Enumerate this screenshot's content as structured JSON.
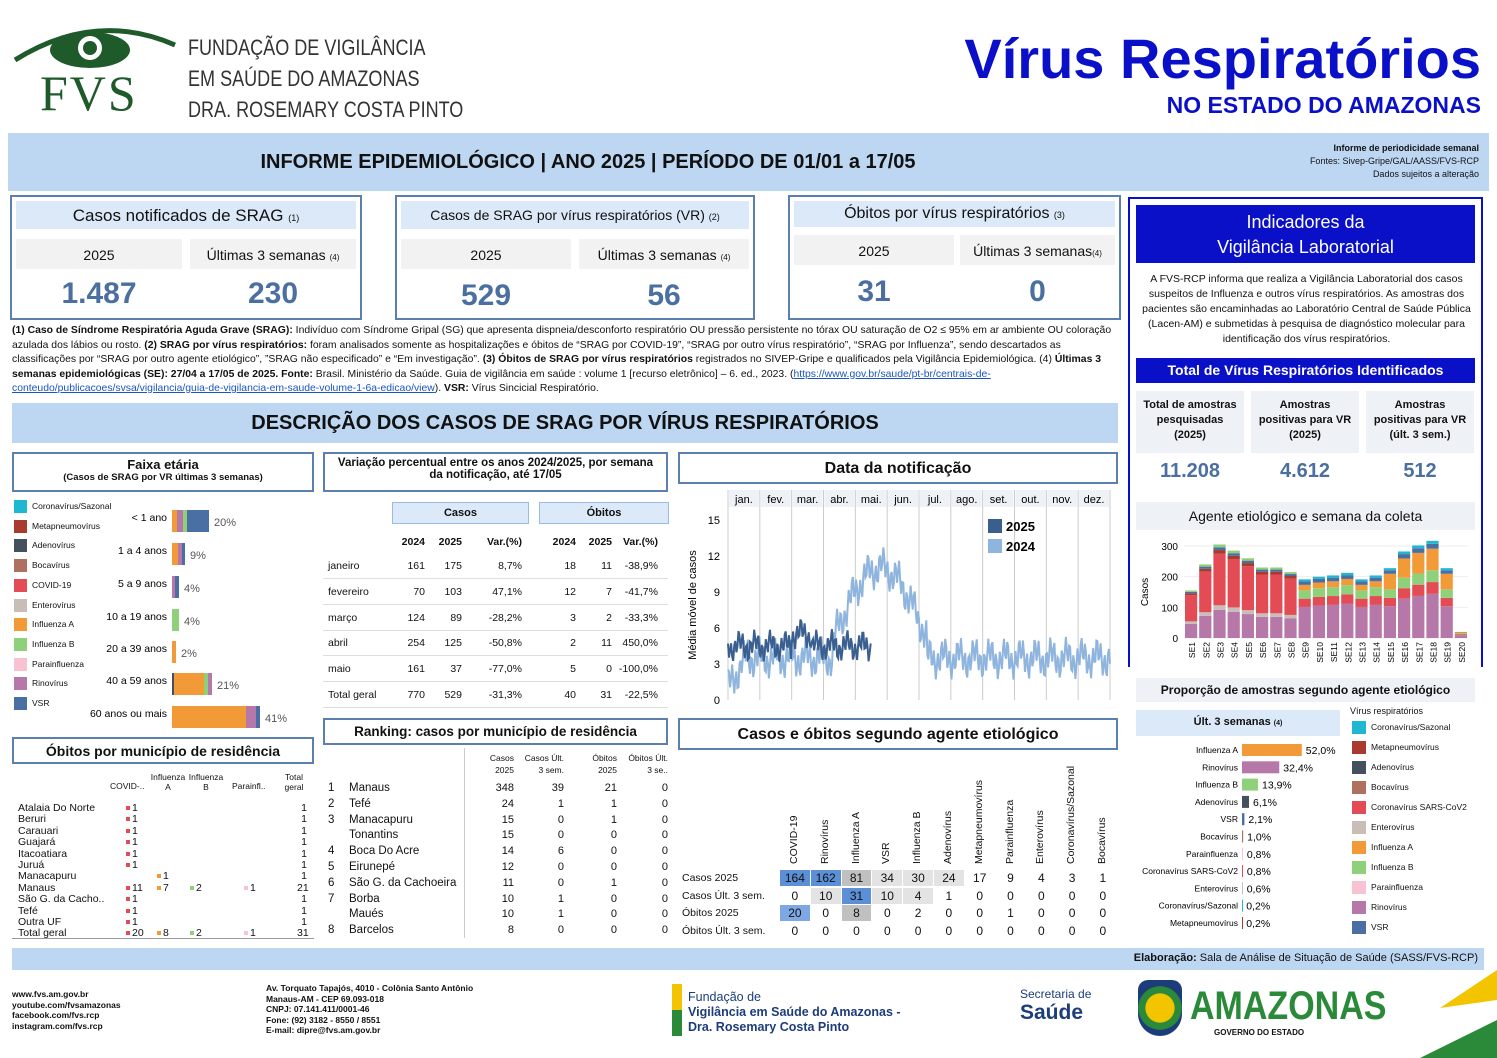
{
  "logo": {
    "fvs": "FVS",
    "line1": "FUNDAÇÃO DE VIGILÂNCIA",
    "line2": "EM SAÚDE DO AMAZONAS",
    "line3": "DRA. ROSEMARY COSTA PINTO"
  },
  "title": {
    "main": "Vírus Respiratórios",
    "sub": "NO ESTADO DO AMAZONAS"
  },
  "banner": {
    "text": "INFORME EPIDEMIOLÓGICO | ANO 2025 | PERÍODO DE 01/01 a 17/05",
    "r1": "Informe de periodicidade semanal",
    "r2": "Fontes: Sivep-Gripe/GAL/AASS/FVS-RCP",
    "r3": "Dados sujeitos a alteração"
  },
  "kpi": [
    {
      "title": "Casos notificados de SRAG",
      "note": "(1)",
      "y": "2025",
      "w": "Últimas 3 semanas",
      "wn": "(4)",
      "v1": "1.487",
      "v2": "230"
    },
    {
      "title": "Casos de SRAG por vírus respiratórios (VR)",
      "note": "(2)",
      "y": "2025",
      "w": "Últimas 3 semanas",
      "wn": "(4)",
      "v1": "529",
      "v2": "56"
    },
    {
      "title": "Óbitos por vírus respiratórios",
      "note": "(3)",
      "y": "2025",
      "w": "Últimas 3 semanas",
      "wn": "(4)",
      "v1": "31",
      "v2": "0"
    }
  ],
  "notes": {
    "n1b": "(1) Caso de Síndrome Respiratória Aguda Grave (SRAG):",
    "n1": " Indivíduo com Síndrome Gripal (SG) que apresenta dispneia/desconforto respiratório OU pressão persistente no tórax OU saturação de O2 ≤ 95% em ar ambiente OU coloração azulada dos lábios ou rosto. ",
    "n2b": "(2) SRAG por vírus respiratórios:",
    "n2": " foram analisados somente as hospitalizações e óbitos de “SRAG por COVID-19”, “SRAG por outro vírus respiratório”, “SRAG por Influenza”,  sendo descartados as classificações por “SRAG por outro agente etiológico”, ”SRAG não especificado” e “Em investigação”. ",
    "n3b": "(3) Óbitos de SRAG por vírus respiratórios",
    "n3": " registrados no SIVEP-Gripe e qualificados pela Vigilância Epidemiológica. (4) ",
    "n4b": "Últimas 3 semanas epidemiológicas (SE): 27/04 a 17/05 de 2025. Fonte:",
    "n4": " Brasil. Ministério da Saúde. Guia de vigilância em saúde : volume 1 [recurso eletrônico] – 6. ed., 2023. (",
    "link": "https://www.gov.br/saude/pt-br/centrais-de-conteudo/publicacoes/svsa/vigilancia/guia-de-vigilancia-em-saude-volume-1-6a-edicao/view",
    "n5": "). ",
    "n5b": "VSR:",
    "n6": " Vírus Sincicial Respiratório."
  },
  "section_title": "DESCRIÇÃO DOS CASOS DE SRAG POR VÍRUS RESPIRATÓRIOS",
  "lab": {
    "title1": "Indicadores da",
    "title2": "Vigilância Laboratorial",
    "text": "A FVS-RCP informa que realiza a Vigilância Laboratorial dos casos suspeitos de Influenza e outros vírus respiratórios.  As amostras  dos pacientes são encaminhadas ao Laboratório Central de Saúde Pública (Lacen-AM) e submetidas à pesquisa de diagnóstico molecular para identificação dos vírus respiratórios.",
    "total": "Total de Vírus Respiratórios Identificados",
    "k": [
      {
        "l1": "Total de amostras",
        "l2": "pesquisadas",
        "l3": "(2025)",
        "v": "11.208"
      },
      {
        "l1": "Amostras",
        "l2": "positivas para VR",
        "l3": "(2025)",
        "v": "4.612"
      },
      {
        "l1": "Amostras",
        "l2": "positivas para VR",
        "l3": "(últ. 3 sem.)",
        "v": "512"
      }
    ]
  },
  "faixa": {
    "title": "Faixa etária",
    "sub": "(Casos de SRAG por VR últimas 3 semanas)",
    "legend": [
      "Coronavírus/Sazonal",
      "Metapneumovírus",
      "Adenovírus",
      "Bocavírus",
      "COVID-19",
      "Enterovírus",
      "Influenza A",
      "Influenza B",
      "Parainfluenza",
      "Rinovírus",
      "VSR"
    ],
    "rows": [
      {
        "l": "< 1 ano",
        "p": "20%"
      },
      {
        "l": "1 a 4 anos",
        "p": "9%"
      },
      {
        "l": "5 a 9 anos",
        "p": "4%"
      },
      {
        "l": "10 a 19 anos",
        "p": "4%"
      },
      {
        "l": "20 a 39 anos",
        "p": "2%"
      },
      {
        "l": "40 a 59 anos",
        "p": "21%"
      },
      {
        "l": "60 anos ou mais",
        "p": "41%"
      }
    ]
  },
  "var": {
    "title": "Variação percentual entre os anos 2024/2025, por semana da notificação, até 17/05",
    "casos": "Casos",
    "obitos": "Óbitos",
    "h": [
      "2024",
      "2025",
      "Var.(%)",
      "2024",
      "2025",
      "Var.(%)"
    ],
    "rows": [
      [
        "janeiro",
        "161",
        "175",
        "8,7%",
        "18",
        "11",
        "-38,9%"
      ],
      [
        "fevereiro",
        "70",
        "103",
        "47,1%",
        "12",
        "7",
        "-41,7%"
      ],
      [
        "março",
        "124",
        "89",
        "-28,2%",
        "3",
        "2",
        "-33,3%"
      ],
      [
        "abril",
        "254",
        "125",
        "-50,8%",
        "2",
        "11",
        "450,0%"
      ],
      [
        "maio",
        "161",
        "37",
        "-77,0%",
        "5",
        "0",
        "-100,0%"
      ],
      [
        "Total geral",
        "770",
        "529",
        "-31,3%",
        "40",
        "31",
        "-22,5%"
      ]
    ]
  },
  "data_notif": {
    "title": "Data da notificação",
    "months": [
      "jan.",
      "fev.",
      "mar.",
      "abr.",
      "mai.",
      "jun.",
      "jul.",
      "ago.",
      "set.",
      "out.",
      "nov.",
      "dez."
    ],
    "ylabel": "Média móvel de casos",
    "yticks": [
      "15",
      "12",
      "9",
      "6",
      "3",
      "0"
    ],
    "l2025": "2025",
    "l2024": "2024"
  },
  "agente": {
    "title": "Agente etiológico e semana da coleta",
    "ylabel": "Casos",
    "yticks": [
      "300",
      "200",
      "100",
      "0"
    ],
    "weeks": [
      "SE1",
      "SE2",
      "SE3",
      "SE4",
      "SE5",
      "SE6",
      "SE7",
      "SE8",
      "SE9",
      "SE10",
      "SE11",
      "SE12",
      "SE13",
      "SE14",
      "SE15",
      "SE16",
      "SE17",
      "SE18",
      "SE19",
      "SE20"
    ]
  },
  "prop": {
    "title": "Proporção de amostras segundo agente etiológico",
    "sub": "Últ. 3 semanas",
    "subn": "(4)",
    "legtitle": "Vírus respiratórios",
    "rows": [
      {
        "l": "Influenza A",
        "p": "52,0%"
      },
      {
        "l": "Rinovírus",
        "p": "32,4%"
      },
      {
        "l": "Influenza B",
        "p": "13,9%"
      },
      {
        "l": "Adenovírus",
        "p": "6,1%"
      },
      {
        "l": "VSR",
        "p": "2,1%"
      },
      {
        "l": "Bocavírus",
        "p": "1,0%"
      },
      {
        "l": "Parainfluenza",
        "p": "0,8%"
      },
      {
        "l": "Coronavírus SARS-CoV2",
        "p": "0,8%"
      },
      {
        "l": "Enterovírus",
        "p": "0,6%"
      },
      {
        "l": "Coronavírus/Sazonal",
        "p": "0,2%"
      },
      {
        "l": "Metapneumovírus",
        "p": "0,2%"
      }
    ],
    "legend": [
      "Coronavírus/Sazonal",
      "Metapneumovírus",
      "Adenovírus",
      "Bocavírus",
      "Coronavírus SARS-CoV2",
      "Enterovírus",
      "Influenza A",
      "Influenza B",
      "Parainfluenza",
      "Rinovírus",
      "VSR"
    ]
  },
  "obitos_mun": {
    "title": "Óbitos por município de residência",
    "h": [
      "COVID-..",
      "Influenza A",
      "Influenza B",
      "Parainfl..",
      "Total geral"
    ],
    "rows": [
      [
        "Atalaia Do Norte",
        "1",
        "",
        "",
        "",
        "1"
      ],
      [
        "Beruri",
        "1",
        "",
        "",
        "",
        "1"
      ],
      [
        "Carauari",
        "1",
        "",
        "",
        "",
        "1"
      ],
      [
        "Guajará",
        "1",
        "",
        "",
        "",
        "1"
      ],
      [
        "Itacoatiara",
        "1",
        "",
        "",
        "",
        "1"
      ],
      [
        "Juruá",
        "1",
        "",
        "",
        "",
        "1"
      ],
      [
        "Manacapuru",
        "",
        "1",
        "",
        "",
        "1"
      ],
      [
        "Manaus",
        "11",
        "7",
        "2",
        "1",
        "21"
      ],
      [
        "São G. da Cacho..",
        "1",
        "",
        "",
        "",
        "1"
      ],
      [
        "Tefé",
        "1",
        "",
        "",
        "",
        "1"
      ],
      [
        "Outra UF",
        "1",
        "",
        "",
        "",
        "1"
      ],
      [
        "Total geral",
        "20",
        "8",
        "2",
        "1",
        "31"
      ]
    ]
  },
  "ranking": {
    "title": "Ranking: casos por município de residência",
    "h": [
      "Casos 2025",
      "Casos Últ. 3 sem.",
      "Óbitos 2025",
      "Óbitos Últ. 3 se.."
    ],
    "rows": [
      [
        "1",
        "Manaus",
        "348",
        "39",
        "21",
        "0"
      ],
      [
        "2",
        "Tefé",
        "24",
        "1",
        "1",
        "0"
      ],
      [
        "3",
        "Manacapuru",
        "15",
        "0",
        "1",
        "0"
      ],
      [
        "",
        "Tonantins",
        "15",
        "0",
        "0",
        "0"
      ],
      [
        "4",
        "Boca Do Acre",
        "14",
        "6",
        "0",
        "0"
      ],
      [
        "5",
        "Eirunepé",
        "12",
        "0",
        "0",
        "0"
      ],
      [
        "6",
        "São G. da Cachoeira",
        "11",
        "0",
        "1",
        "0"
      ],
      [
        "7",
        "Borba",
        "10",
        "1",
        "0",
        "0"
      ],
      [
        "",
        "Maués",
        "10",
        "1",
        "0",
        "0"
      ],
      [
        "8",
        "Barcelos",
        "8",
        "0",
        "0",
        "0"
      ]
    ]
  },
  "cas_ob": {
    "title": "Casos e óbitos segundo agente etiológico",
    "cols": [
      "COVID-19",
      "Rinovírus",
      "Influenza A",
      "VSR",
      "Influenza B",
      "Adenovírus",
      "Metapneumovírus",
      "Parainfluenza",
      "Enterovírus",
      "Coronavírus/Sazonal",
      "Bocavírus"
    ],
    "rows": [
      {
        "l": "Casos 2025",
        "v": [
          "164",
          "162",
          "81",
          "34",
          "30",
          "24",
          "17",
          "9",
          "4",
          "3",
          "1"
        ]
      },
      {
        "l": "Casos Últ. 3 sem.",
        "v": [
          "0",
          "10",
          "31",
          "10",
          "4",
          "1",
          "0",
          "0",
          "0",
          "0",
          "0"
        ]
      },
      {
        "l": "Óbitos 2025",
        "v": [
          "20",
          "0",
          "8",
          "0",
          "2",
          "0",
          "0",
          "1",
          "0",
          "0",
          "0"
        ]
      },
      {
        "l": "Óbitos Últ. 3 sem.",
        "v": [
          "0",
          "0",
          "0",
          "0",
          "0",
          "0",
          "0",
          "0",
          "0",
          "0",
          "0"
        ]
      }
    ]
  },
  "footer": {
    "elab_b": "Elaboração:",
    "elab": " Sala de Análise de Situação de Saúde (SASS/FVS-RCP)",
    "links": [
      "www.fvs.am.gov.br",
      "youtube.com/fvsamazonas",
      "facebook.com/fvs.rcp",
      "instagram.com/fvs.rcp"
    ],
    "addr": [
      "Av. Torquato Tapajós, 4010 - Colônia Santo Antônio",
      "Manaus-AM - CEP 69.093-018",
      "CNPJ: 07.141.411/0001-46",
      "Fone: (92) 3182 - 8550 / 8551",
      "E-mail: dipre@fvs.am.gov.br"
    ],
    "f1": "Fundação de",
    "f2": "Vigilância em Saúde do Amazonas -",
    "f3": "Dra. Rosemary Costa Pinto",
    "sec1": "Secretaria de",
    "sec2": "Saúde",
    "am": "AMAZONAS",
    "gov": "GOVERNO DO ESTADO"
  },
  "colors": {
    "Coronavirus": "#1fb8d0",
    "Metapneumo": "#a83a2e",
    "Adeno": "#45505e",
    "Boca": "#b07060",
    "COVID": "#e34b55",
    "Entero": "#c9bdb8",
    "FluA": "#f39a38",
    "FluB": "#8fd17a",
    "Parainf": "#f7c3d3",
    "Rino": "#b678a8",
    "VSR": "#4a6fa5"
  },
  "chart_data": [
    {
      "type": "line",
      "title": "Data da notificação",
      "ylabel": "Média móvel de casos",
      "ylim": [
        0,
        15
      ],
      "series": [
        {
          "name": "2025",
          "note": "jan–mai"
        },
        {
          "name": "2024",
          "note": "jan–dez"
        }
      ]
    },
    {
      "type": "bar",
      "title": "Agente etiológico e semana da coleta",
      "ylabel": "Casos",
      "ylim": [
        0,
        300
      ],
      "categories": [
        "SE1",
        "SE2",
        "SE3",
        "SE4",
        "SE5",
        "SE6",
        "SE7",
        "SE8",
        "SE9",
        "SE10",
        "SE11",
        "SE12",
        "SE13",
        "SE14",
        "SE15",
        "SE16",
        "SE17",
        "SE18",
        "SE19",
        "SE20"
      ],
      "totals": [
        155,
        240,
        305,
        285,
        260,
        230,
        230,
        215,
        225,
        235,
        240,
        250,
        225,
        240,
        230,
        285,
        305,
        320,
        230,
        20
      ]
    },
    {
      "type": "bar",
      "title": "Proporção de amostras segundo agente etiológico",
      "categories": [
        "Influenza A",
        "Rinovírus",
        "Influenza B",
        "Adenovírus",
        "VSR",
        "Bocavírus",
        "Parainfluenza",
        "Coronavírus SARS-CoV2",
        "Enterovírus",
        "Coronavírus/Sazonal",
        "Metapneumovírus"
      ],
      "values": [
        52.0,
        32.4,
        13.9,
        6.1,
        2.1,
        1.0,
        0.8,
        0.8,
        0.6,
        0.2,
        0.2
      ]
    },
    {
      "type": "bar",
      "title": "Faixa etária",
      "categories": [
        "< 1 ano",
        "1 a 4 anos",
        "5 a 9 anos",
        "10 a 19 anos",
        "20 a 39 anos",
        "40 a 59 anos",
        "60 anos ou mais"
      ],
      "values": [
        20,
        9,
        4,
        4,
        2,
        21,
        41
      ]
    }
  ]
}
